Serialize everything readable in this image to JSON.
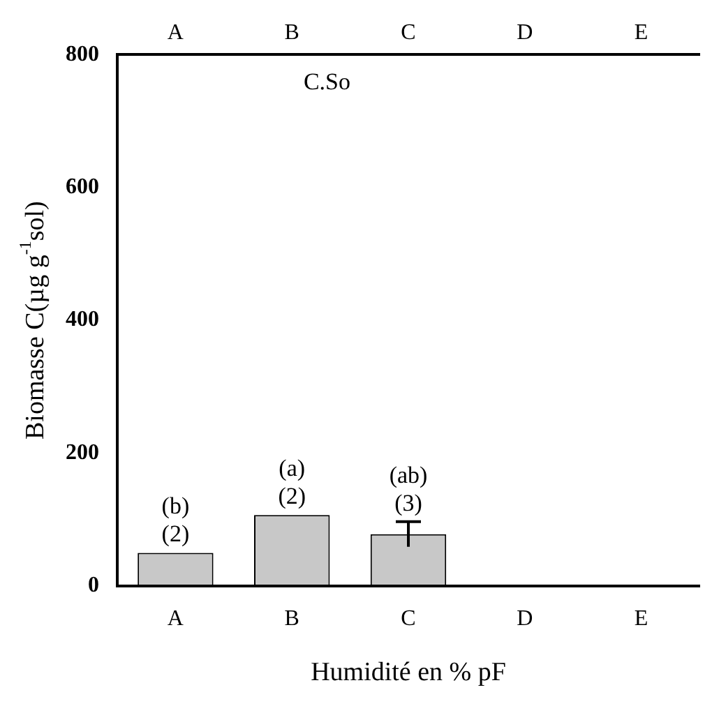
{
  "chart_data": {
    "type": "bar",
    "title": "C.So",
    "xlabel": "Humidité en % pF",
    "ylabel": "Biomasse C(µg g$^{-1}$sol)",
    "categories": [
      "A",
      "B",
      "C",
      "D",
      "E"
    ],
    "values": [
      50,
      107,
      78,
      null,
      null
    ],
    "errors": [
      null,
      null,
      19,
      null,
      null
    ],
    "color": "#c8c8c8",
    "ylim": [
      0,
      800
    ],
    "yticks": [
      0,
      200,
      400,
      600,
      800
    ],
    "grid": false,
    "legend": false,
    "annotations": [
      {
        "text": "(b)\n(2)",
        "x": "A",
        "y": 50
      },
      {
        "text": "(a)\n(2)",
        "x": "B",
        "y": 107
      },
      {
        "text": "(ab)\n(3)",
        "x": "C",
        "y": 97
      }
    ]
  }
}
